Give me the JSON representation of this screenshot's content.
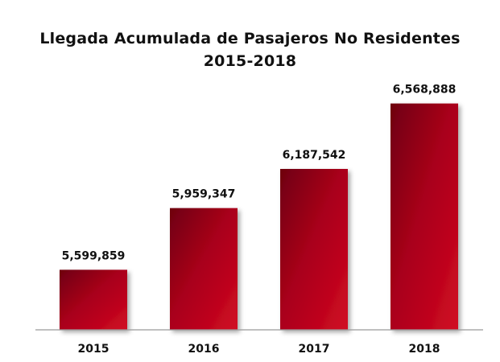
{
  "chart_data": {
    "type": "bar",
    "title_line1": "Llegada Acumulada de Pasajeros No Residentes",
    "title_line2": "2015-2018",
    "categories": [
      "2015",
      "2016",
      "2017",
      "2018"
    ],
    "values": [
      5599859,
      5959347,
      6187542,
      6568888
    ],
    "value_labels": [
      "5,599,859",
      "5,959,347",
      "6,187,542",
      "6,568,888"
    ],
    "ylim": [
      5250000,
      6600000
    ],
    "grid": false,
    "legend": "none",
    "colors": {
      "bar_dark": "#6e0010",
      "bar_mid": "#a8001a",
      "bar_light": "#d10a22",
      "axis": "#9a9a9a"
    }
  }
}
